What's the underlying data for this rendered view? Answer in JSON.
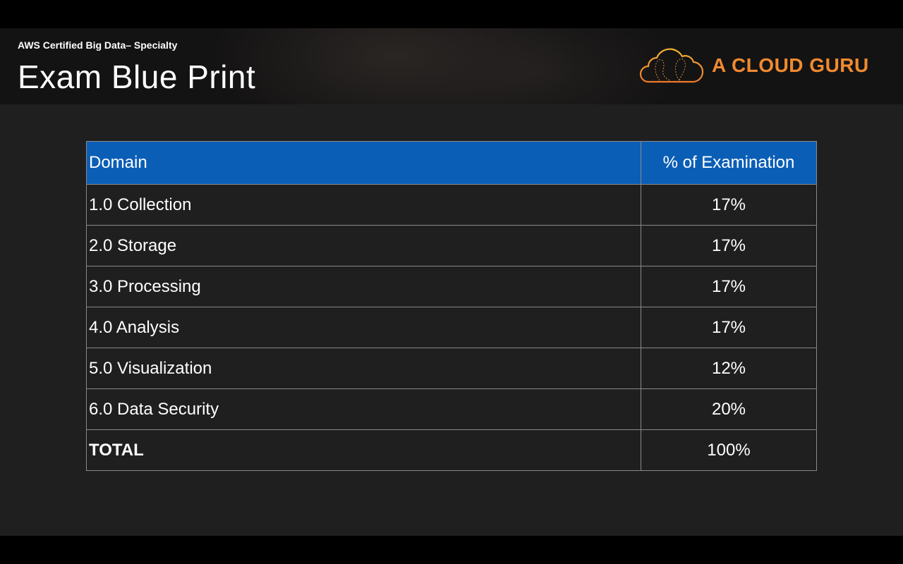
{
  "header": {
    "subtitle": "AWS Certified Big Data– Specialty",
    "title": "Exam Blue Print",
    "logo_text": "A CLOUD GURU",
    "logo_icon": "cloud-balloon-icon",
    "brand_color": "#f08a30"
  },
  "table": {
    "header_color": "#0b5eb6",
    "columns": [
      "Domain",
      "% of Examination"
    ],
    "rows": [
      [
        "1.0 Collection",
        "17%"
      ],
      [
        "2.0 Storage",
        "17%"
      ],
      [
        "3.0 Processing",
        "17%"
      ],
      [
        "4.0 Analysis",
        "17%"
      ],
      [
        "5.0 Visualization",
        "12%"
      ],
      [
        "6.0 Data Security",
        "20%"
      ]
    ],
    "total": [
      "TOTAL",
      "100%"
    ]
  }
}
